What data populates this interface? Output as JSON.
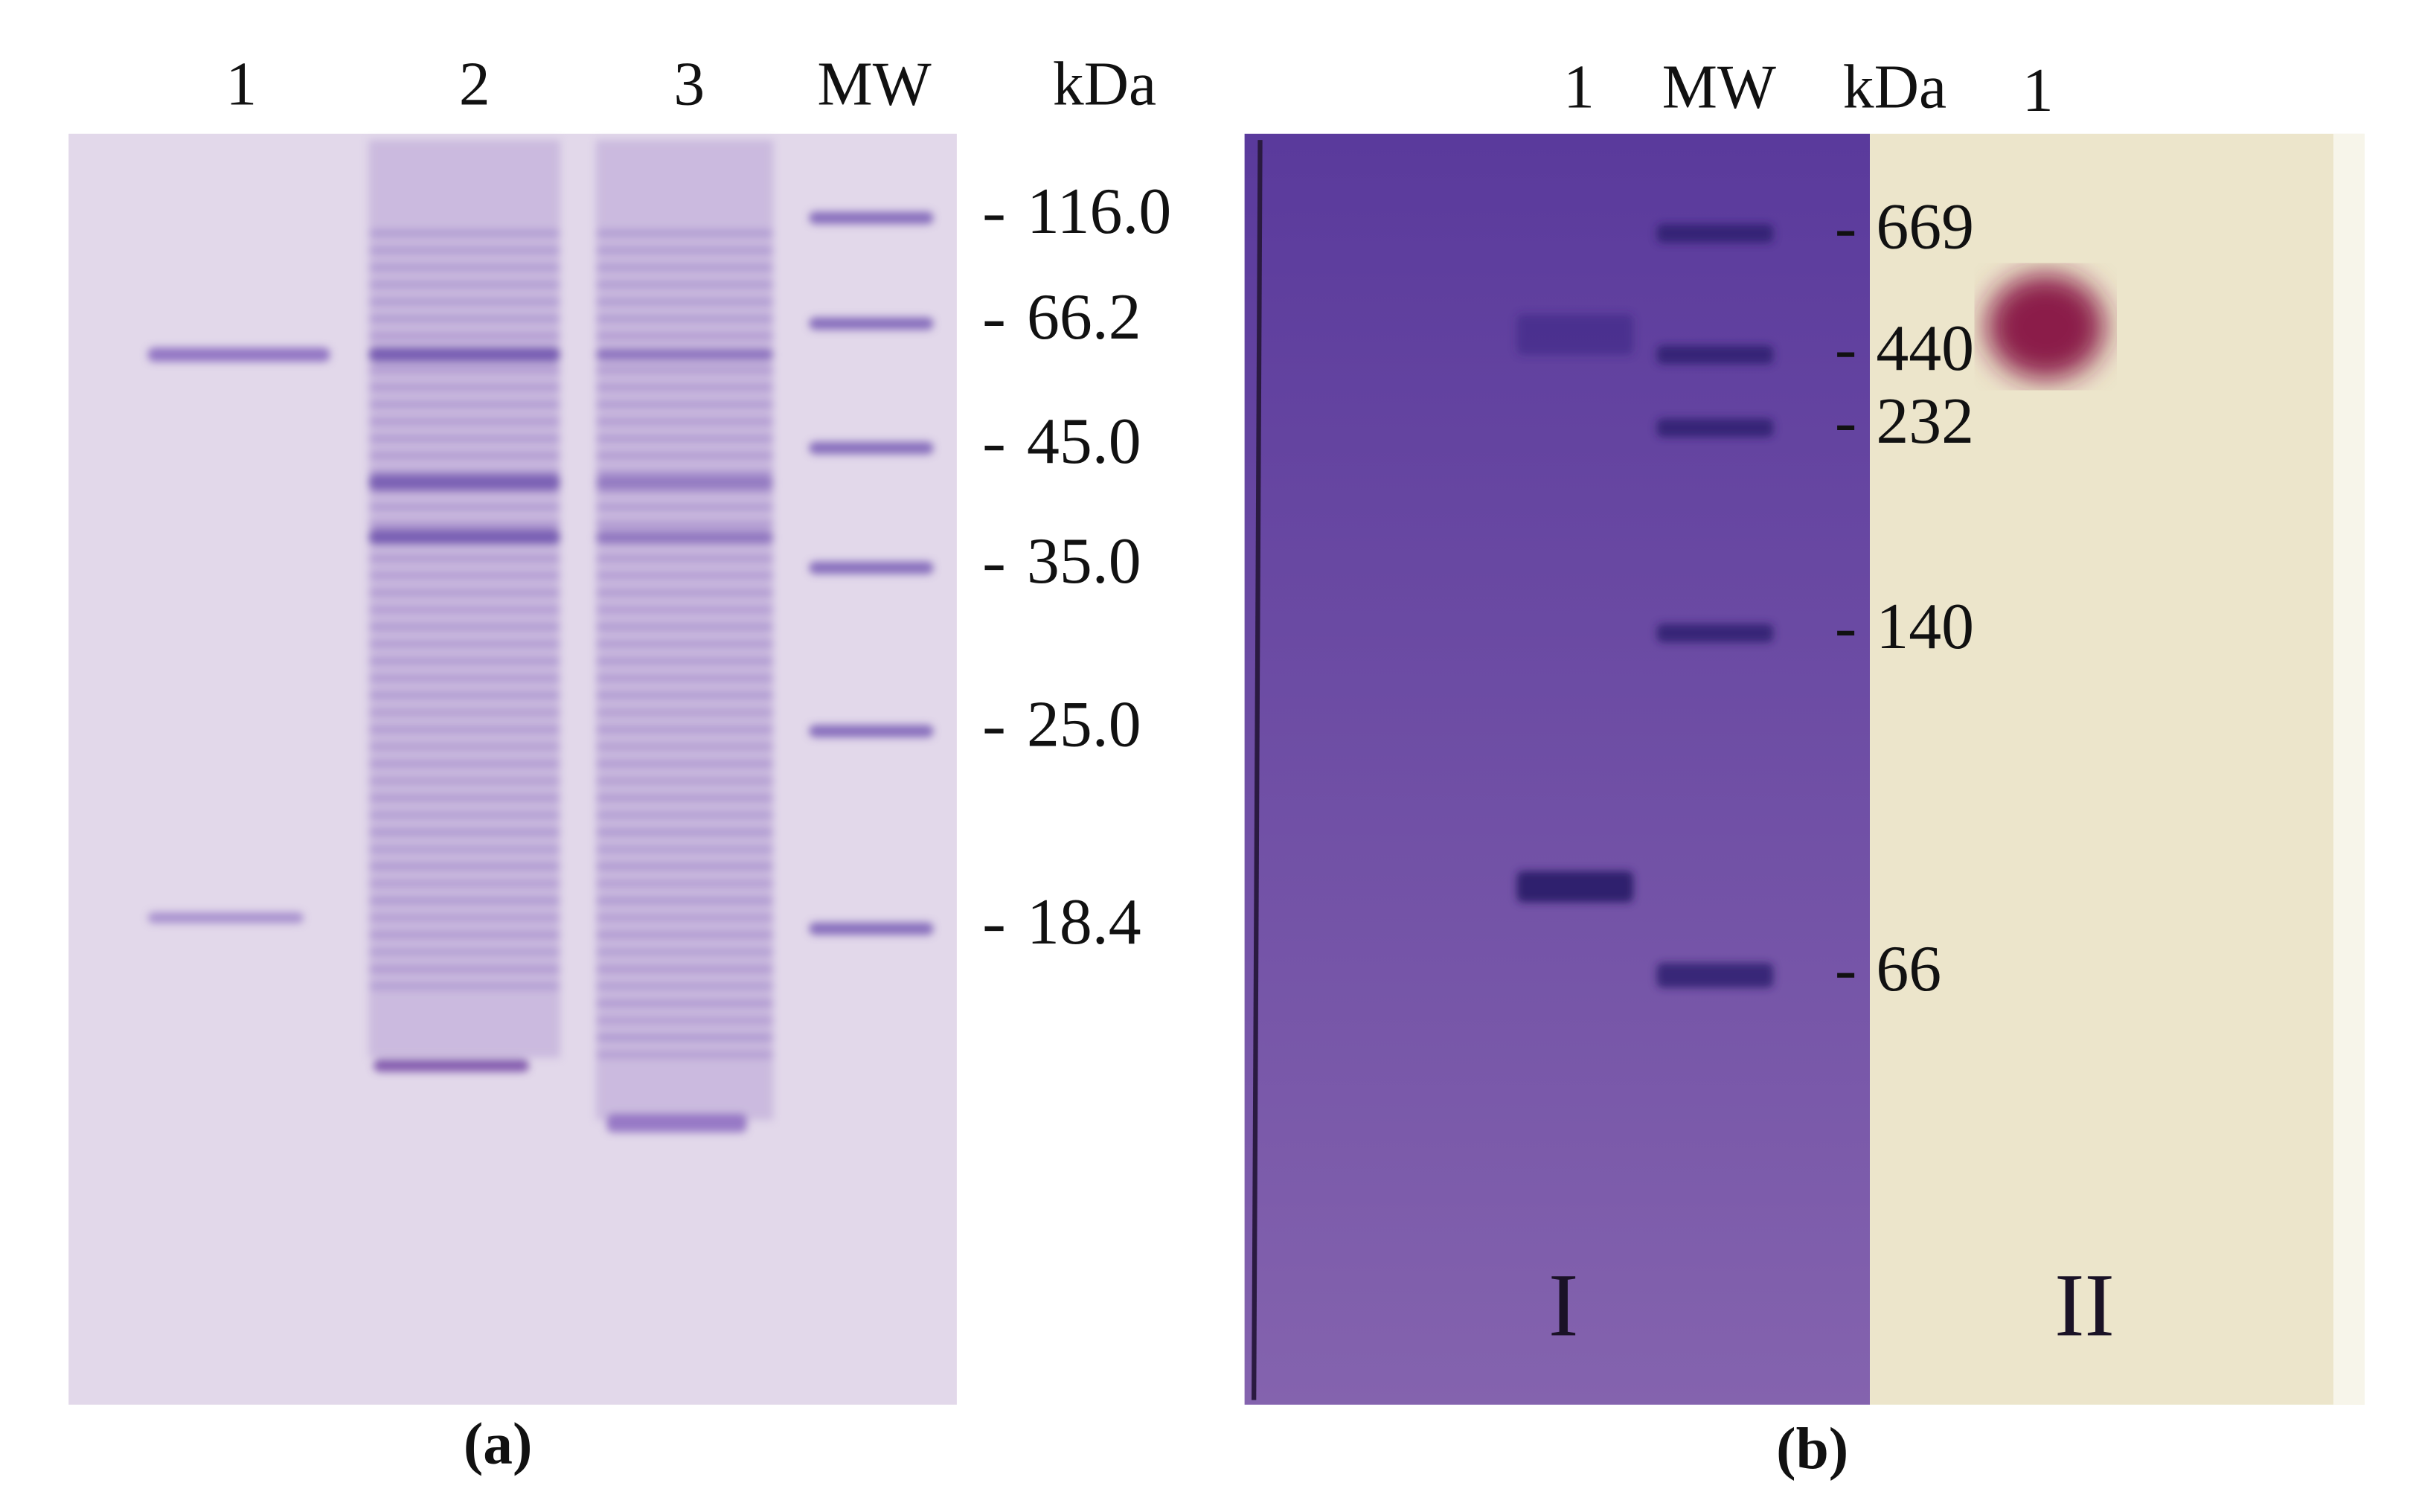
{
  "panel_a": {
    "lanes": [
      "1",
      "2",
      "3",
      "MW"
    ],
    "unit": "kDa",
    "markers": [
      "116.0",
      "66.2",
      "45.0",
      "35.0",
      "25.0",
      "18.4"
    ],
    "caption": "(a)"
  },
  "panel_b": {
    "lanes": [
      "1",
      "MW"
    ],
    "unit": "kDa",
    "lane_right": "1",
    "markers": [
      "669",
      "440",
      "232",
      "140",
      "66"
    ],
    "sections": [
      "I",
      "II"
    ],
    "caption": "(b)"
  }
}
